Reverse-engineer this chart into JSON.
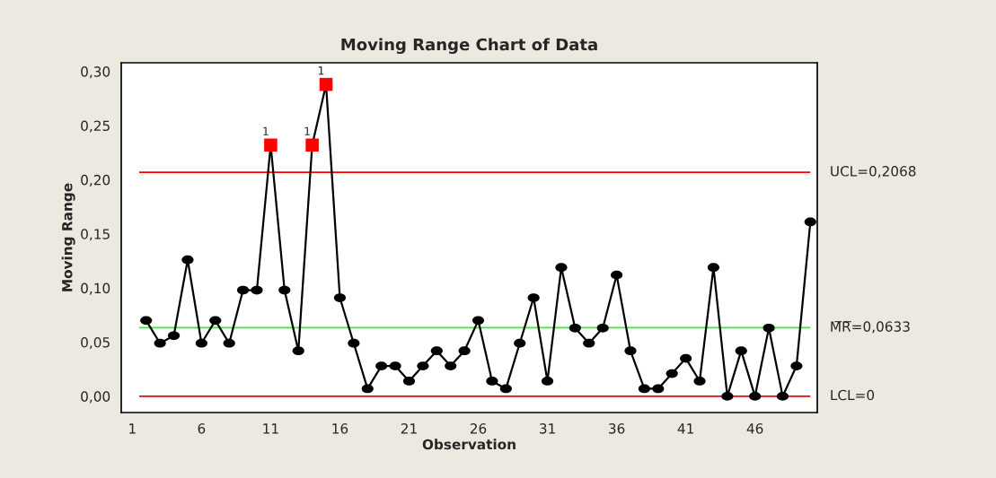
{
  "chart_data": {
    "type": "line",
    "title": "Moving Range Chart of Data",
    "xlabel": "Observation",
    "ylabel": "Moving Range",
    "series": [
      {
        "color": "#000000",
        "marker": "none",
        "x": [
          2,
          3,
          4,
          5,
          6,
          7,
          8,
          9,
          10,
          11,
          12,
          13,
          14,
          15,
          16,
          17,
          18,
          19,
          20,
          21,
          22,
          23,
          24,
          25,
          26,
          27,
          28,
          29,
          30,
          31,
          32,
          33,
          34,
          35,
          36,
          37,
          38,
          39,
          40,
          41,
          42,
          43,
          44,
          45,
          46,
          47,
          48,
          49,
          50
        ],
        "values": [
          0.07,
          0.049,
          0.056,
          0.126,
          0.049,
          0.07,
          0.049,
          0.098,
          0.098,
          0.232,
          0.098,
          0.042,
          0.232,
          0.288,
          0.091,
          0.049,
          0.007,
          0.028,
          0.028,
          0.014,
          0.028,
          0.042,
          0.028,
          0.042,
          0.07,
          0.014,
          0.007,
          0.049,
          0.091,
          0.014,
          0.119,
          0.063,
          0.049,
          0.063,
          0.112,
          0.042,
          0.007,
          0.007,
          0.021,
          0.035,
          0.014,
          0.119,
          0,
          0.042,
          0,
          0.063,
          0,
          0.028,
          0.161
        ]
      },
      {
        "type": "scatter",
        "color": "#000000",
        "marker": "circle",
        "x": [
          2,
          3,
          4,
          5,
          6,
          7,
          8,
          9,
          10,
          12,
          13,
          16,
          17,
          18,
          19,
          20,
          21,
          22,
          23,
          24,
          25,
          26,
          27,
          28,
          29,
          30,
          31,
          32,
          33,
          34,
          35,
          36,
          37,
          38,
          39,
          40,
          41,
          42,
          43,
          44,
          45,
          46,
          47,
          48,
          49,
          50
        ],
        "values": [
          0.07,
          0.049,
          0.056,
          0.126,
          0.049,
          0.07,
          0.049,
          0.098,
          0.098,
          0.098,
          0.042,
          0.091,
          0.049,
          0.007,
          0.028,
          0.028,
          0.014,
          0.028,
          0.042,
          0.028,
          0.042,
          0.07,
          0.014,
          0.007,
          0.049,
          0.091,
          0.014,
          0.119,
          0.063,
          0.049,
          0.063,
          0.112,
          0.042,
          0.007,
          0.007,
          0.021,
          0.035,
          0.014,
          0.119,
          0,
          0.042,
          0,
          0.063,
          0,
          0.028,
          0.161
        ]
      },
      {
        "type": "scatter",
        "color": "#ff0000",
        "marker": "square",
        "x": [
          11,
          14,
          15
        ],
        "values": [
          0.232,
          0.232,
          0.288
        ]
      }
    ],
    "xlim": [
      0.2,
      50.5
    ],
    "xticks": [
      1,
      6,
      11,
      16,
      21,
      26,
      31,
      36,
      41,
      46
    ],
    "ylim": [
      -0.015,
      0.308
    ],
    "yticks": [
      {
        "value": 0,
        "label": "0,00"
      },
      {
        "value": 0.05,
        "label": "0,05"
      },
      {
        "value": 0.1,
        "label": "0,10"
      },
      {
        "value": 0.15,
        "label": "0,15"
      },
      {
        "value": 0.2,
        "label": "0,20"
      },
      {
        "value": 0.25,
        "label": "0,25"
      },
      {
        "value": 0.3,
        "label": "0,30"
      }
    ],
    "ref_lines": [
      {
        "axis": "y",
        "value": 0.2068,
        "label": "UCL=0,2068",
        "color": "#ff0000"
      },
      {
        "axis": "y",
        "value": 0.0633,
        "label": "M̅R̅=0,0633",
        "color": "#33ee33"
      },
      {
        "axis": "y",
        "value": 0,
        "label": "LCL=0",
        "color": "#ff0000"
      }
    ],
    "annotations": [
      {
        "text": "1",
        "x": 11,
        "y": 0.232
      },
      {
        "text": "1",
        "x": 14,
        "y": 0.232
      },
      {
        "text": "1",
        "x": 15,
        "y": 0.288
      }
    ],
    "grid": false,
    "legend": false
  }
}
